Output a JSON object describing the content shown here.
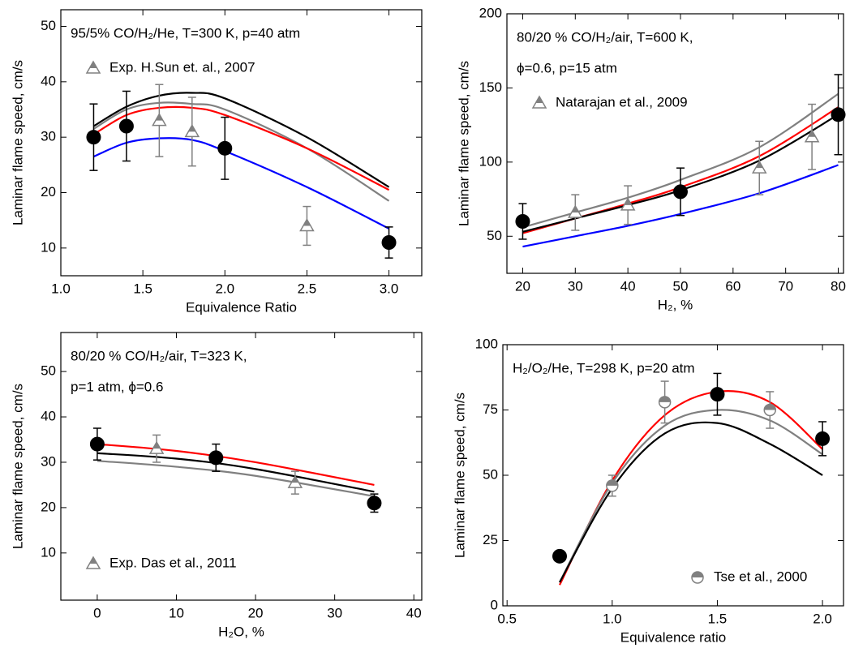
{
  "chart_data": [
    {
      "type": "line",
      "annotations": [
        "95/5% CO/H₂/He, T=300 K, p=40 atm"
      ],
      "xlabel": "Equivalence Ratio",
      "ylabel": "Laminar flame speed, cm/s",
      "xlim": [
        1.0,
        3.2
      ],
      "ylim": [
        5,
        53
      ],
      "xticks": [
        {
          "value": 1,
          "label": "1.0"
        },
        1.5,
        {
          "value": 2,
          "label": "2.0"
        },
        2.5,
        {
          "value": 3,
          "label": "3.0"
        }
      ],
      "yticks": [
        10,
        20,
        30,
        40,
        50
      ],
      "legend": "upper left",
      "series": [
        {
          "color": "#000000",
          "x": [
            1.2,
            1.4,
            1.6,
            1.8,
            2.0,
            2.5,
            3.0
          ],
          "values": [
            32,
            35.5,
            37.5,
            38,
            37,
            30,
            21
          ]
        },
        {
          "color": "#808080",
          "x": [
            1.2,
            1.4,
            1.6,
            1.8,
            2.0,
            2.5,
            3.0
          ],
          "values": [
            31.5,
            35,
            36.2,
            36,
            35,
            28,
            18.5
          ]
        },
        {
          "color": "#ff0000",
          "x": [
            1.2,
            1.4,
            1.6,
            1.8,
            2.0,
            2.5,
            3.0
          ],
          "values": [
            30.5,
            34,
            35.3,
            35.3,
            34,
            28,
            20.5
          ]
        },
        {
          "color": "#0000ff",
          "x": [
            1.2,
            1.4,
            1.6,
            1.8,
            2.0,
            2.5,
            3.0
          ],
          "values": [
            26.5,
            29,
            29.8,
            29.5,
            27.5,
            21,
            13.5
          ]
        },
        {
          "name": "Exp.  H.Sun et. al., 2007",
          "color": "#808080",
          "marker": "triangle",
          "x": [
            1.6,
            1.8,
            2.5
          ],
          "values": [
            33,
            31,
            14
          ],
          "errors": [
            6.5,
            6.2,
            3.5
          ]
        },
        {
          "color": "#000000",
          "marker": "circle",
          "x": [
            1.2,
            1.4,
            2.0,
            3.0
          ],
          "values": [
            30,
            32,
            28,
            11
          ],
          "errors": [
            6,
            6.3,
            5.6,
            2.8
          ]
        }
      ]
    },
    {
      "type": "line",
      "annotations": [
        "80/20 % CO/H₂/air, T=600 K,",
        "ϕ=0.6, p=15 atm"
      ],
      "xlabel": "H₂, %",
      "ylabel": "Laminar flame speed, cm/s",
      "xlim": [
        17,
        81
      ],
      "ylim": [
        25,
        200
      ],
      "xticks": [
        20,
        30,
        40,
        50,
        60,
        70,
        80
      ],
      "yticks": [
        50,
        100,
        150,
        200
      ],
      "legend": "upper left",
      "series": [
        {
          "color": "#808080",
          "x": [
            20,
            30,
            40,
            50,
            65,
            80
          ],
          "values": [
            56,
            66,
            76,
            88,
            110,
            146
          ]
        },
        {
          "color": "#ff0000",
          "x": [
            20,
            30,
            40,
            50,
            65,
            80
          ],
          "values": [
            52,
            62,
            72,
            83,
            104,
            137
          ]
        },
        {
          "color": "#000000",
          "x": [
            20,
            30,
            40,
            50,
            65,
            80
          ],
          "values": [
            53,
            62,
            71,
            81,
            101,
            132
          ]
        },
        {
          "color": "#0000ff",
          "x": [
            20,
            30,
            40,
            50,
            65,
            80
          ],
          "values": [
            43,
            50,
            57,
            65,
            79,
            98
          ]
        },
        {
          "name": "Natarajan et al., 2009",
          "color": "#808080",
          "marker": "triangle",
          "x": [
            30,
            40,
            65,
            75
          ],
          "values": [
            66,
            71,
            96,
            117
          ],
          "errors": [
            12,
            13,
            18,
            22
          ]
        },
        {
          "color": "#000000",
          "marker": "circle",
          "x": [
            20,
            50,
            80
          ],
          "values": [
            60,
            80,
            132
          ],
          "errors": [
            12,
            16,
            27
          ]
        }
      ]
    },
    {
      "type": "line",
      "annotations": [
        "80/20 % CO/H₂/air, T=323 K,",
        "p=1 atm, ϕ=0.6"
      ],
      "xlabel": "H₂O, %",
      "ylabel": "Laminar flame speed, cm/s",
      "xlim": [
        -4.6,
        41
      ],
      "ylim": [
        -0.4,
        58.6
      ],
      "xticks": [
        0,
        10,
        20,
        30,
        40
      ],
      "yticks": [
        10,
        20,
        30,
        40,
        50
      ],
      "legend": "lower left",
      "series": [
        {
          "color": "#ff0000",
          "x": [
            0,
            10,
            20,
            35
          ],
          "values": [
            34,
            32.5,
            30,
            25
          ]
        },
        {
          "color": "#000000",
          "x": [
            0,
            10,
            20,
            35
          ],
          "values": [
            32,
            30.8,
            28.5,
            23.5
          ]
        },
        {
          "color": "#808080",
          "x": [
            0,
            10,
            20,
            35
          ],
          "values": [
            30.3,
            29,
            27,
            22.5
          ]
        },
        {
          "name": "Exp. Das et al., 2011",
          "color": "#808080",
          "marker": "triangle",
          "x": [
            7.5,
            25
          ],
          "values": [
            33,
            25.5
          ],
          "errors": [
            3,
            2.5
          ]
        },
        {
          "color": "#000000",
          "marker": "circle",
          "x": [
            0,
            15,
            35
          ],
          "values": [
            34,
            31,
            21
          ],
          "errors": [
            3.5,
            3,
            2
          ]
        }
      ]
    },
    {
      "type": "line",
      "annotations": [
        "H₂/O₂/He, T=298 K, p=20 atm"
      ],
      "xlabel": "Equivalence ratio",
      "ylabel": "Laminar flame speed, cm/s",
      "xlim": [
        0.48,
        2.1
      ],
      "ylim": [
        0,
        100
      ],
      "xticks": [
        0.5,
        {
          "value": 1,
          "label": "1.0"
        },
        1.5,
        {
          "value": 2,
          "label": "2.0"
        }
      ],
      "yticks": [
        0,
        25,
        50,
        75,
        100
      ],
      "legend": "lower right",
      "series": [
        {
          "color": "#ff0000",
          "x": [
            0.75,
            1.0,
            1.25,
            1.5,
            1.75,
            2.0
          ],
          "values": [
            8,
            48,
            73,
            82,
            78,
            60
          ]
        },
        {
          "color": "#808080",
          "x": [
            0.75,
            1.0,
            1.25,
            1.5,
            1.75,
            2.0
          ],
          "values": [
            9,
            47,
            69,
            75,
            71,
            58
          ]
        },
        {
          "color": "#000000",
          "x": [
            0.75,
            1.0,
            1.25,
            1.5,
            1.75,
            2.0
          ],
          "values": [
            9,
            45,
            66,
            70,
            62,
            50
          ]
        },
        {
          "name": "Tse et al., 2000",
          "color": "#808080",
          "marker": "half-circle",
          "x": [
            1.0,
            1.25,
            1.75
          ],
          "values": [
            46,
            78,
            75
          ],
          "errors": [
            4,
            8,
            7
          ]
        },
        {
          "color": "#000000",
          "marker": "circle",
          "x": [
            0.75,
            1.5,
            2.0
          ],
          "values": [
            19,
            81,
            64
          ],
          "errors": [
            0,
            8,
            6.5
          ]
        }
      ]
    }
  ]
}
